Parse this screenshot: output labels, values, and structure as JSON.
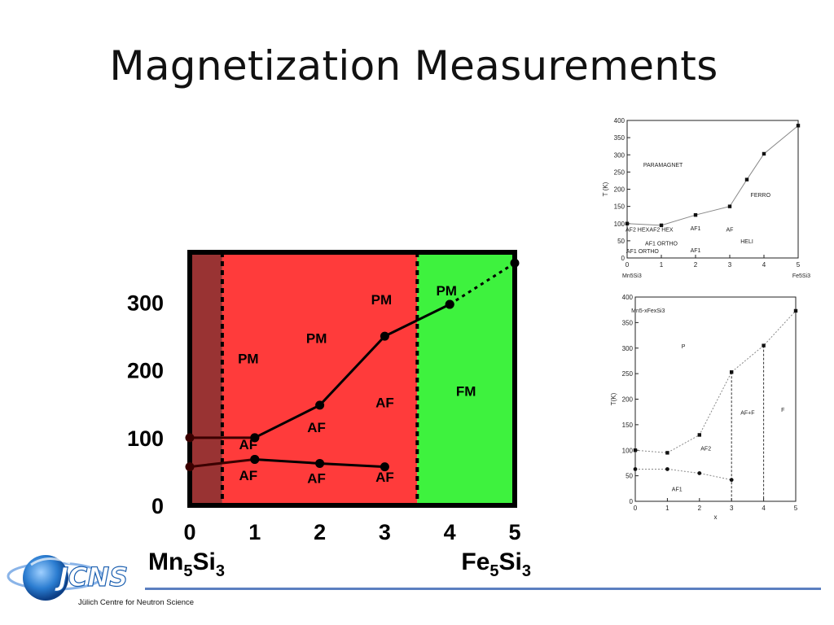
{
  "slide": {
    "title": "Magnetization Measurements"
  },
  "logo": {
    "caption": "Jülich Centre for Neutron Science",
    "wordmark": "JCNS"
  },
  "colors": {
    "dark_red": "#993333",
    "red": "#ff3b3b",
    "green": "#3ef23e",
    "footer_line": "#5b7fc0",
    "figure_line": "#888888"
  },
  "chart_data": [
    {
      "type": "line",
      "x_ticks": [
        "0",
        "1",
        "2",
        "3",
        "4",
        "5"
      ],
      "y_ticks": [
        "0",
        "100",
        "200",
        "300"
      ],
      "xlim": [
        0,
        5
      ],
      "ylim": [
        0,
        370
      ],
      "x_end_labels": {
        "left": {
          "base": "Mn",
          "sub1": "5",
          "mid": "Si",
          "sub2": "3"
        },
        "right": {
          "base": "Fe",
          "sub1": "5",
          "mid": "Si",
          "sub2": "3"
        }
      },
      "regions": [
        {
          "x_from": 0,
          "x_to": 0.5,
          "color": "#993333"
        },
        {
          "x_from": 0.5,
          "x_to": 3.5,
          "color": "#ff3b3b"
        },
        {
          "x_from": 3.5,
          "x_to": 5,
          "color": "#3ef23e"
        }
      ],
      "boundaries": [
        0.5,
        3.5
      ],
      "series": [
        {
          "x": [
            0,
            1
          ],
          "y": [
            100,
            100
          ],
          "style": "solid",
          "color": "#3a0000"
        },
        {
          "x": [
            1,
            2,
            3,
            4
          ],
          "y": [
            100,
            148,
            250,
            297
          ],
          "style": "solid",
          "color": "#000000"
        },
        {
          "x": [
            4,
            5
          ],
          "y": [
            297,
            358
          ],
          "style": "dotted",
          "color": "#000000"
        },
        {
          "x": [
            0,
            1
          ],
          "y": [
            57,
            68
          ],
          "style": "solid",
          "color": "#3a0000"
        },
        {
          "x": [
            1,
            2,
            3
          ],
          "y": [
            68,
            62,
            57
          ],
          "style": "solid",
          "color": "#000000"
        }
      ],
      "annotations": [
        {
          "text": "PM",
          "x": 0.9,
          "y": 210
        },
        {
          "text": "PM",
          "x": 1.95,
          "y": 240
        },
        {
          "text": "PM",
          "x": 2.95,
          "y": 297
        },
        {
          "text": "PM",
          "x": 3.95,
          "y": 310
        },
        {
          "text": "AF",
          "x": 3.0,
          "y": 145
        },
        {
          "text": "AF",
          "x": 1.95,
          "y": 108
        },
        {
          "text": "AF",
          "x": 0.9,
          "y": 83
        },
        {
          "text": "AF",
          "x": 0.9,
          "y": 37
        },
        {
          "text": "AF",
          "x": 1.95,
          "y": 33
        },
        {
          "text": "AF",
          "x": 3.0,
          "y": 35
        },
        {
          "text": "FM",
          "x": 4.25,
          "y": 162
        }
      ]
    },
    {
      "type": "scatter",
      "ylabel": "T (K)",
      "x_ticks": [
        "0",
        "1",
        "2",
        "3",
        "4",
        "5"
      ],
      "y_ticks": [
        "0",
        "50",
        "100",
        "150",
        "200",
        "250",
        "300",
        "350",
        "400"
      ],
      "xlim": [
        0,
        5
      ],
      "ylim": [
        0,
        400
      ],
      "x_end_labels": {
        "left": "Mn5Si3",
        "right": "Fe5Si3"
      },
      "series": [
        {
          "x": [
            0,
            1,
            2,
            3,
            3.5,
            4,
            5
          ],
          "y": [
            100,
            95,
            125,
            150,
            228,
            303,
            385
          ],
          "style": "solid"
        }
      ],
      "annotations": [
        {
          "text": "PARAMAGNET",
          "x": 1.05,
          "y": 265
        },
        {
          "text": "FERRO",
          "x": 3.9,
          "y": 178
        },
        {
          "text": "AF2 HEX",
          "x": 0.3,
          "y": 77
        },
        {
          "text": "AF2 HEX",
          "x": 1.0,
          "y": 77
        },
        {
          "text": "AF1",
          "x": 2.0,
          "y": 80
        },
        {
          "text": "AF",
          "x": 3.0,
          "y": 77
        },
        {
          "text": "AF1 ORTHO",
          "x": 1.0,
          "y": 37
        },
        {
          "text": "AF1 ORTHO",
          "x": 0.45,
          "y": 14
        },
        {
          "text": "AF1",
          "x": 2.0,
          "y": 17
        },
        {
          "text": "HELI",
          "x": 3.5,
          "y": 43
        }
      ]
    },
    {
      "type": "scatter",
      "ylabel": "T(K)",
      "xlabel": "x",
      "x_ticks": [
        "0",
        "1",
        "2",
        "3",
        "4",
        "5"
      ],
      "y_ticks": [
        "0",
        "50",
        "100",
        "150",
        "200",
        "250",
        "300",
        "350",
        "400"
      ],
      "xlim": [
        0,
        5
      ],
      "ylim": [
        0,
        400
      ],
      "series": [
        {
          "x": [
            0,
            1,
            2,
            3,
            4,
            5
          ],
          "y": [
            100,
            95,
            130,
            253,
            305,
            373
          ],
          "style": "dotted"
        },
        {
          "x": [
            0,
            1,
            2,
            3
          ],
          "y": [
            63,
            63,
            55,
            42
          ],
          "style": "dotted"
        }
      ],
      "boundaries": [
        3,
        4
      ],
      "annotations": [
        {
          "text": "Mn5-xFexSi3",
          "x": 0.4,
          "y": 370
        },
        {
          "text": "P",
          "x": 1.5,
          "y": 300
        },
        {
          "text": "AF+F",
          "x": 3.5,
          "y": 170
        },
        {
          "text": "F",
          "x": 4.6,
          "y": 175
        },
        {
          "text": "AF2",
          "x": 2.2,
          "y": 100
        },
        {
          "text": "AF1",
          "x": 1.3,
          "y": 20
        }
      ]
    }
  ]
}
